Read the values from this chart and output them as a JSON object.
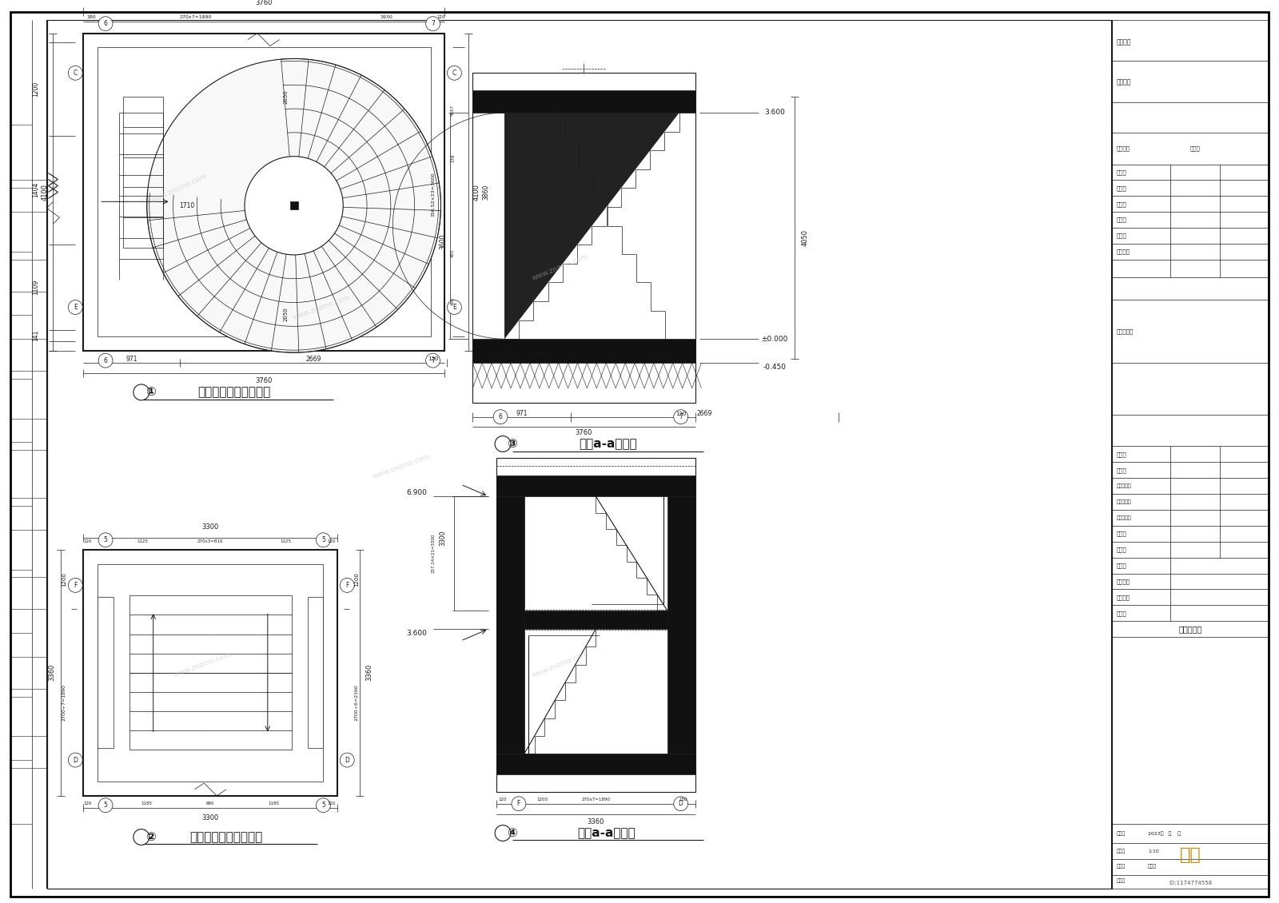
{
  "bg_color": "#ffffff",
  "line_color": "#1a1a1a",
  "page_width": 16.0,
  "page_height": 11.3,
  "drawing_title_1": "一层上二层楼梯平面图",
  "drawing_title_2": "二层上三层楼梯平面图",
  "drawing_title_3": "楼梯a-a剖面图",
  "drawing_title_4": "楼梯a-a剖面图",
  "watermark": "www.znzmo.com",
  "tb_labels_left": [
    "建设单位",
    "合作单位",
    "会签专业",
    "建　筑",
    "结　构",
    "给排水",
    "暖　通",
    "电　气",
    "图纸印章",
    "出图专用章",
    "审　定",
    "审　核",
    "工程主持人",
    "方案设计人",
    "专业负责人",
    "校　对",
    "设　计",
    "制　图",
    "工程编号",
    "子项名称",
    "图　名"
  ],
  "tb_drawing_name": "楼梯大样图",
  "date_text": "2023年   月    日",
  "scale_text": "1:10",
  "stage_text": "施工图",
  "id_text": "ID:1174774558"
}
